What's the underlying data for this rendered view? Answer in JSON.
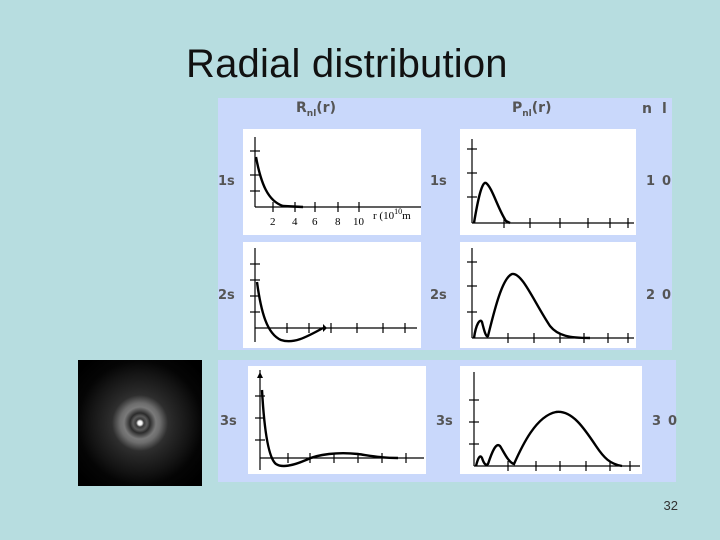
{
  "slide": {
    "title": "Radial distribution",
    "page_number": "32"
  },
  "headers": {
    "R_main": "R",
    "R_sub": "nl",
    "R_tail": "(r)",
    "P_main": "P",
    "P_sub": "nl",
    "P_tail": "(r)",
    "n": "n",
    "l": "l"
  },
  "rows": [
    {
      "left_label": "1s",
      "mid_label": "1s",
      "n": "1",
      "l": "0"
    },
    {
      "left_label": "2s",
      "mid_label": "2s",
      "n": "2",
      "l": "0"
    },
    {
      "left_label": "3s",
      "mid_label": "3s",
      "n": "3",
      "l": "0"
    }
  ],
  "axis": {
    "ticks": [
      "2",
      "4",
      "6",
      "8",
      "10"
    ],
    "unit_label": "r (10",
    "unit_exp": "10",
    "unit_tail": "m"
  }
}
